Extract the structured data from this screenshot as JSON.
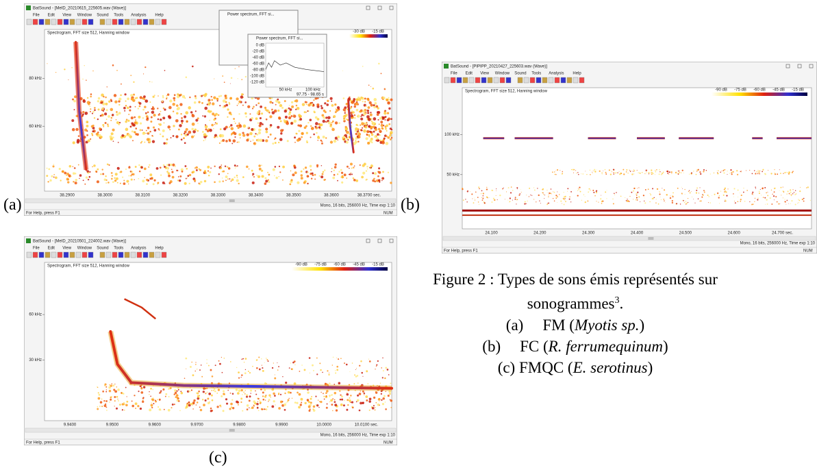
{
  "panels": [
    {
      "label": "(a)",
      "window": {
        "title": "BatSound - [MeID_20210615_225605.wav (Wave)]",
        "menu": [
          "File",
          "Edit",
          "View",
          "Window",
          "Sound",
          "Tools",
          "Analysis",
          "Help"
        ],
        "spectrogram_title": "Spectrogram, FFT size 512, Hanning window",
        "db_scale": [
          "-30 dB",
          "-15 dB"
        ],
        "y_ticks": [
          "80 kHz",
          "60 kHz"
        ],
        "x_ticks": [
          "38.2900",
          "38.3000",
          "38.3100",
          "38.3200",
          "38.3300",
          "38.3400",
          "38.3500",
          "38.3600",
          "38.3700 sec."
        ],
        "info": "Mono, 16 bits, 256000 Hz, Time exp 1:10",
        "status": "For Help, press F1",
        "status_right": "NUM",
        "popups": [
          {
            "title": "Power spectrum, FFT si..."
          },
          {
            "title": "Power spectrum, FFT si...",
            "y_ticks": [
              "0 dB",
              "-20 dB",
              "-40 dB",
              "-60 dB",
              "-80 dB",
              "-100 dB",
              "-120 dB"
            ],
            "x_ticks": [
              "50 kHz",
              "100 kHz"
            ],
            "footer": "97.75 - 98.65 s"
          }
        ]
      }
    },
    {
      "label": "(b)",
      "window": {
        "title": "BatSound - [PIPIPP_20210427_225603.wav (Wave)]",
        "menu": [
          "File",
          "Edit",
          "View",
          "Window",
          "Sound",
          "Tools",
          "Analysis",
          "Help"
        ],
        "spectrogram_title": "Spectrogram, FFT size 512, Hanning window",
        "db_scale": [
          "-90 dB",
          "-75 dB",
          "-60 dB",
          "-45 dB",
          "-15 dB"
        ],
        "y_ticks": [
          "100 kHz",
          "50 kHz"
        ],
        "x_ticks": [
          "24.100",
          "24.200",
          "24.300",
          "24.400",
          "24.500",
          "24.600",
          "24.700 sec."
        ],
        "info": "Mono, 16 bits, 256000 Hz, Time exp 1:10",
        "status": "For Help, press F1",
        "status_right": "NUM"
      }
    },
    {
      "label": "(c)",
      "window": {
        "title": "BatSound - [MeID_20210501_224002.wav (Wave)]",
        "menu": [
          "File",
          "Edit",
          "View",
          "Window",
          "Sound",
          "Tools",
          "Analysis",
          "Help"
        ],
        "spectrogram_title": "Spectrogram, FFT size 512, Hanning window",
        "db_scale": [
          "-90 dB",
          "-75 dB",
          "-60 dB",
          "-45 dB",
          "-15 dB"
        ],
        "y_ticks": [
          "60 kHz",
          "30 kHz"
        ],
        "x_ticks": [
          "9.9400",
          "9.9500",
          "9.9600",
          "9.9700",
          "9.9800",
          "9.9900",
          "10.0000",
          "10.0100 sec."
        ],
        "info": "Mono, 16 bits, 256000 Hz, Time exp 1:10",
        "status": "For Help, press F1",
        "status_right": "NUM"
      }
    }
  ],
  "caption": {
    "line1": "Figure 2 : Types de sons émis représentés sur",
    "line2": "sonogrammes",
    "superscript": "3",
    "end": ".",
    "items": [
      {
        "label": "(a)",
        "text": "FM (",
        "species": "Myotis sp.",
        "close": ")"
      },
      {
        "label": "(b)",
        "text": "FC (",
        "species": "R. ferrumequinum",
        "close": ")"
      },
      {
        "label": "(c)",
        "text": "FMQC (",
        "species": "E. serotinus",
        "close": ")"
      }
    ]
  }
}
